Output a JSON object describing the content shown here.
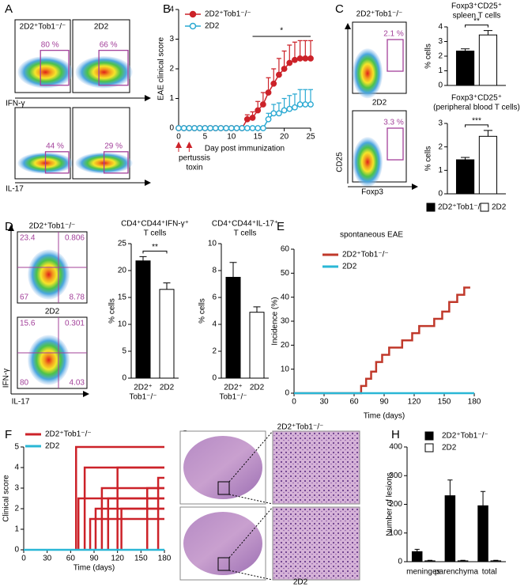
{
  "panel_labels": [
    "A",
    "B",
    "C",
    "D",
    "E",
    "F",
    "G",
    "H"
  ],
  "flow_a": {
    "plots": [
      {
        "label": "2D2⁺Tob1⁻/⁻",
        "gate": "80 %"
      },
      {
        "label": "2D2",
        "gate": "66 %"
      },
      {
        "gate": "44 %"
      },
      {
        "gate": "29 %"
      }
    ],
    "x_labels": [
      "IFN-γ",
      "IL-17"
    ]
  },
  "flow_c": {
    "plots": [
      {
        "label": "2D2⁺Tob1⁻/⁻",
        "gate": "2.1 %"
      },
      {
        "label": "2D2",
        "gate": "3.3 %"
      }
    ],
    "y_label": "CD25",
    "x_label": "Foxp3"
  },
  "flow_d": {
    "plots": [
      {
        "label": "2D2⁺Tob1⁻/⁻",
        "quadrants": [
          "23.4",
          "0.806",
          "67",
          "8.78"
        ]
      },
      {
        "label": "2D2",
        "quadrants": [
          "15.6",
          "0.301",
          "80",
          "4.03"
        ]
      }
    ],
    "y_label": "IFN-γ",
    "x_label": "IL-17"
  },
  "histology_g": {
    "labels": [
      "2D2⁺Tob1⁻/⁻",
      "2D2"
    ]
  },
  "chart_data": [
    {
      "type": "line",
      "y_label": "EAE clinical score",
      "x_label": "Day post immunization",
      "x": [
        0,
        1,
        2,
        3,
        4,
        5,
        6,
        7,
        8,
        9,
        10,
        11,
        12,
        13,
        14,
        15,
        16,
        17,
        18,
        19,
        20,
        21,
        22,
        23,
        24,
        25
      ],
      "xlim": [
        0,
        25
      ],
      "xticks": [
        0,
        5,
        10,
        15,
        20,
        25
      ],
      "ylim": [
        0,
        4
      ],
      "yticks": [
        0,
        1,
        2,
        3,
        4
      ],
      "series": [
        {
          "name": "2D2⁺Tob1⁻/⁻",
          "color": "#cc2229",
          "marker": "filled",
          "values": [
            0,
            0,
            0,
            0,
            0,
            0,
            0,
            0,
            0,
            0,
            0,
            0,
            0,
            0.3,
            0.35,
            0.6,
            0.8,
            1.2,
            1.5,
            1.8,
            2.0,
            2.2,
            2.3,
            2.35,
            2.35,
            2.35
          ],
          "errors": [
            null,
            null,
            null,
            null,
            null,
            null,
            null,
            null,
            null,
            null,
            null,
            null,
            null,
            0.15,
            0.2,
            0.3,
            0.4,
            0.5,
            0.5,
            0.55,
            0.6,
            0.6,
            0.6,
            0.6,
            0.6,
            0.6
          ]
        },
        {
          "name": "2D2",
          "color": "#2aa9d2",
          "marker": "open",
          "values": [
            0,
            0,
            0,
            0,
            0,
            0,
            0,
            0,
            0,
            0,
            0,
            0,
            0,
            0,
            0,
            0,
            0,
            0.3,
            0.5,
            0.5,
            0.6,
            0.65,
            0.7,
            0.8,
            0.8,
            0.8
          ],
          "errors": [
            null,
            null,
            null,
            null,
            null,
            null,
            null,
            null,
            null,
            null,
            null,
            null,
            null,
            null,
            null,
            null,
            null,
            0.2,
            0.3,
            0.35,
            0.4,
            0.45,
            0.45,
            0.5,
            0.5,
            0.5
          ]
        }
      ],
      "significance": {
        "label": "*",
        "x": [
          14,
          25
        ]
      },
      "note": {
        "lines": [
          "pertussis",
          "toxin"
        ],
        "x": [
          0,
          2
        ]
      }
    },
    {
      "type": "bar",
      "title": [
        "Foxp3⁺CD25⁺",
        "spleen T cells"
      ],
      "y_label": "% cells",
      "categories": [
        null
      ],
      "ylim": [
        0,
        4
      ],
      "yticks": [
        0,
        1,
        2,
        3,
        4
      ],
      "series": [
        {
          "name": "2D2⁺Tob1⁻/⁻",
          "color": "#000000",
          "values": [
            2.35
          ],
          "errors": [
            0.15
          ]
        },
        {
          "name": "2D2",
          "color": "#ffffff",
          "values": [
            3.45
          ],
          "errors": [
            0.3
          ]
        }
      ],
      "significance": {
        "label": "**"
      }
    },
    {
      "type": "bar",
      "title": [
        "Foxp3⁺CD25⁺",
        "(peripheral blood T cells)"
      ],
      "y_label": "% cells",
      "categories": [
        null
      ],
      "ylim": [
        0,
        3
      ],
      "yticks": [
        0,
        1,
        2,
        3
      ],
      "series": [
        {
          "name": "2D2⁺Tob1⁻/⁻",
          "color": "#000000",
          "values": [
            1.45
          ],
          "errors": [
            0.1
          ]
        },
        {
          "name": "2D2",
          "color": "#ffffff",
          "values": [
            2.45
          ],
          "errors": [
            0.25
          ]
        }
      ],
      "significance": {
        "label": "***"
      }
    },
    {
      "type": "bar",
      "title": [
        "CD4⁺CD44⁺IFN-γ⁺",
        "T cells"
      ],
      "y_label": "% cells",
      "categories": [
        [
          "2D2⁺",
          "Tob1⁻/⁻"
        ],
        "2D2"
      ],
      "values": [
        21.8,
        16.5
      ],
      "errors": [
        0.8,
        1.2
      ],
      "colors": [
        "#000000",
        "#ffffff"
      ],
      "ylim": [
        0,
        25
      ],
      "yticks": [
        0,
        5,
        10,
        15,
        20,
        25
      ],
      "significance": {
        "label": "**"
      }
    },
    {
      "type": "bar",
      "title": [
        "CD4⁺CD44⁺IL-17⁺",
        "T cells"
      ],
      "y_label": "% cells",
      "categories": [
        [
          "2D2⁺",
          "Tob1⁻/⁻"
        ],
        "2D2"
      ],
      "values": [
        7.5,
        4.9
      ],
      "errors": [
        1.1,
        0.4
      ],
      "colors": [
        "#000000",
        "#ffffff"
      ],
      "ylim": [
        0,
        10
      ],
      "yticks": [
        0,
        2,
        4,
        6,
        8,
        10
      ]
    },
    {
      "type": "step",
      "title": [
        "spontaneous EAE"
      ],
      "y_label": "Incidence (%)",
      "x_label": "Time (days)",
      "xlim": [
        0,
        180
      ],
      "xticks": [
        0,
        30,
        60,
        90,
        120,
        150,
        180
      ],
      "ylim": [
        0,
        60
      ],
      "yticks": [
        0,
        10,
        20,
        30,
        40,
        50,
        60
      ],
      "series": [
        {
          "name": "2D2⁺Tob1⁻/⁻",
          "color": "#c0392b",
          "x": [
            0,
            67,
            72,
            77,
            82,
            88,
            95,
            100,
            108,
            118,
            125,
            140,
            148,
            155,
            163,
            170,
            176
          ],
          "values": [
            0,
            3,
            6,
            9,
            13,
            16,
            19,
            19,
            22,
            25,
            28,
            31,
            34,
            38,
            41,
            44,
            44
          ]
        },
        {
          "name": "2D2",
          "color": "#2ab7d6",
          "x": [
            0,
            180
          ],
          "values": [
            0,
            0
          ]
        }
      ]
    },
    {
      "type": "onset",
      "y_label": "Clinical score",
      "x_label": "Time (days)",
      "xlim": [
        0,
        180
      ],
      "xticks": [
        0,
        30,
        60,
        90,
        120,
        150,
        180
      ],
      "ylim": [
        0,
        5
      ],
      "yticks": [
        0,
        1,
        2,
        3,
        4,
        5
      ],
      "series": [
        {
          "name": "2D2⁺Tob1⁻/⁻",
          "color": "#cc2229",
          "x": [
            67,
            70,
            78,
            85,
            92,
            100,
            108,
            120,
            125,
            158,
            172
          ],
          "values": [
            5,
            2.5,
            4,
            1.5,
            2,
            3,
            2.5,
            4,
            2,
            3,
            3.5
          ]
        },
        {
          "name": "2D2",
          "color": "#2ab7d6",
          "x": [
            0
          ],
          "values": [
            0
          ]
        }
      ]
    },
    {
      "type": "bar",
      "y_label": "Number of lesions",
      "categories": [
        "meninges",
        "parenchyma",
        "total"
      ],
      "ylim": [
        0,
        400
      ],
      "yticks": [
        0,
        100,
        200,
        300,
        400
      ],
      "series": [
        {
          "name": "2D2⁺Tob1⁻/⁻",
          "color": "#000000",
          "values": [
            35,
            230,
            195
          ],
          "errors": [
            8,
            55,
            50
          ]
        },
        {
          "name": "2D2",
          "color": "#ffffff",
          "values": [
            3,
            3,
            3
          ],
          "errors": [
            2,
            2,
            2
          ]
        }
      ]
    }
  ]
}
